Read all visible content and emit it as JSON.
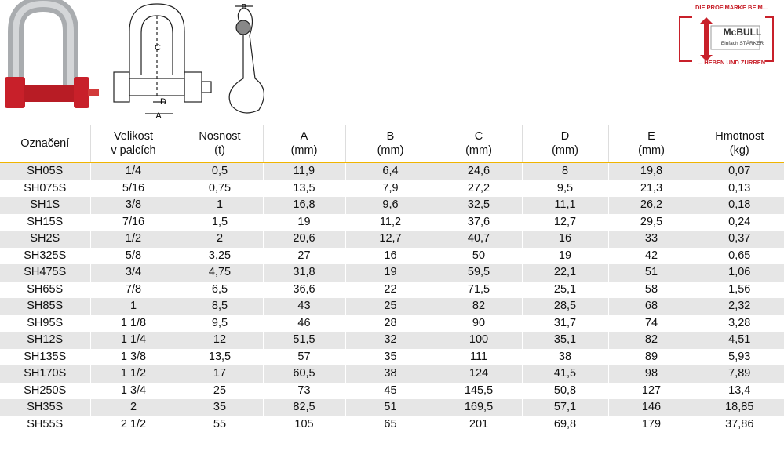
{
  "logo": {
    "tagline_top": "DIE PROFIMARKE BEIM...",
    "brand": "McBULL",
    "slogan": "Einfach STÄRKER",
    "tagline_bottom": "... HEBEN UND ZURREN"
  },
  "diagram": {
    "labels": [
      "C",
      "D",
      "A",
      "B"
    ]
  },
  "table": {
    "header": [
      [
        "Označení"
      ],
      [
        "Velikost",
        "v palcích"
      ],
      [
        "Nosnost",
        "(t)"
      ],
      [
        "A",
        "(mm)"
      ],
      [
        "B",
        "(mm)"
      ],
      [
        "C",
        "(mm)"
      ],
      [
        "D",
        "(mm)"
      ],
      [
        "E",
        "(mm)"
      ],
      [
        "Hmotnost",
        "(kg)"
      ]
    ],
    "rows": [
      [
        "SH05S",
        "1/4",
        "0,5",
        "11,9",
        "6,4",
        "24,6",
        "8",
        "19,8",
        "0,07"
      ],
      [
        "SH075S",
        "5/16",
        "0,75",
        "13,5",
        "7,9",
        "27,2",
        "9,5",
        "21,3",
        "0,13"
      ],
      [
        "SH1S",
        "3/8",
        "1",
        "16,8",
        "9,6",
        "32,5",
        "11,1",
        "26,2",
        "0,18"
      ],
      [
        "SH15S",
        "7/16",
        "1,5",
        "19",
        "11,2",
        "37,6",
        "12,7",
        "29,5",
        "0,24"
      ],
      [
        "SH2S",
        "1/2",
        "2",
        "20,6",
        "12,7",
        "40,7",
        "16",
        "33",
        "0,37"
      ],
      [
        "SH325S",
        "5/8",
        "3,25",
        "27",
        "16",
        "50",
        "19",
        "42",
        "0,65"
      ],
      [
        "SH475S",
        "3/4",
        "4,75",
        "31,8",
        "19",
        "59,5",
        "22,1",
        "51",
        "1,06"
      ],
      [
        "SH65S",
        "7/8",
        "6,5",
        "36,6",
        "22",
        "71,5",
        "25,1",
        "58",
        "1,56"
      ],
      [
        "SH85S",
        "1",
        "8,5",
        "43",
        "25",
        "82",
        "28,5",
        "68",
        "2,32"
      ],
      [
        "SH95S",
        "1 1/8",
        "9,5",
        "46",
        "28",
        "90",
        "31,7",
        "74",
        "3,28"
      ],
      [
        "SH12S",
        "1 1/4",
        "12",
        "51,5",
        "32",
        "100",
        "35,1",
        "82",
        "4,51"
      ],
      [
        "SH135S",
        "1 3/8",
        "13,5",
        "57",
        "35",
        "111",
        "38",
        "89",
        "5,93"
      ],
      [
        "SH170S",
        "1 1/2",
        "17",
        "60,5",
        "38",
        "124",
        "41,5",
        "98",
        "7,89"
      ],
      [
        "SH250S",
        "1 3/4",
        "25",
        "73",
        "45",
        "145,5",
        "50,8",
        "127",
        "13,4"
      ],
      [
        "SH35S",
        "2",
        "35",
        "82,5",
        "51",
        "169,5",
        "57,1",
        "146",
        "18,85"
      ],
      [
        "SH55S",
        "2 1/2",
        "55",
        "105",
        "65",
        "201",
        "69,8",
        "179",
        "37,86"
      ]
    ]
  }
}
